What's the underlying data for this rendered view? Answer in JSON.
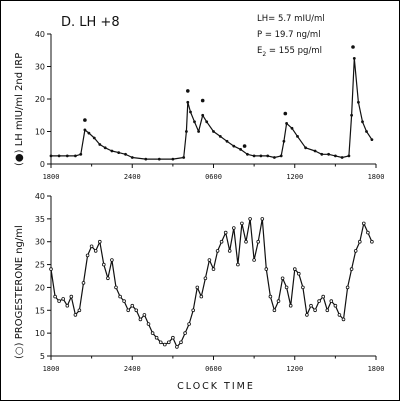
{
  "figure": {
    "panel_title": "D.  LH +8",
    "stats": {
      "lh": "LH= 5.7 mIU/ml",
      "p": "P  = 19.7  ng/ml",
      "e2_prefix": "E",
      "e2_sub": "2",
      "e2_rest": " = 155  pg/ml"
    },
    "xlabel": "CLOCK          TIME",
    "colors": {
      "ink": "#111111"
    }
  },
  "chart_data": [
    {
      "type": "line",
      "title": "",
      "ylabel_prefix": "(",
      "ylabel_marker": "filled-circle",
      "ylabel_text": ") LH mIU/ml 2nd IRP",
      "ylim": [
        0,
        40
      ],
      "yticks": [
        0,
        10,
        20,
        30,
        40
      ],
      "xlim": [
        0,
        24
      ],
      "xticks": [
        {
          "v": 0,
          "label": "1800"
        },
        {
          "v": 6,
          "label": "2400"
        },
        {
          "v": 12,
          "label": "0600"
        },
        {
          "v": 18,
          "label": "1200"
        },
        {
          "v": 24,
          "label": "1800"
        }
      ],
      "marker": "filled-circle",
      "pulse_marks": [
        {
          "x": 2.5,
          "y": 13.5
        },
        {
          "x": 10.1,
          "y": 22.5
        },
        {
          "x": 11.2,
          "y": 19.5
        },
        {
          "x": 14.3,
          "y": 5.5
        },
        {
          "x": 17.3,
          "y": 15.5
        },
        {
          "x": 22.3,
          "y": 36.0
        }
      ],
      "x": [
        0,
        0.6,
        1.2,
        1.8,
        2.2,
        2.5,
        2.8,
        3.2,
        3.6,
        4.0,
        4.5,
        5.0,
        5.5,
        6.0,
        7.0,
        8.0,
        9.0,
        9.8,
        10.0,
        10.1,
        10.3,
        10.6,
        10.9,
        11.2,
        11.5,
        12.0,
        12.5,
        13.0,
        13.5,
        14.0,
        14.5,
        15.0,
        15.5,
        16.0,
        16.5,
        17.0,
        17.2,
        17.4,
        17.8,
        18.2,
        18.8,
        19.5,
        20.0,
        20.5,
        21.0,
        21.5,
        22.0,
        22.2,
        22.4,
        22.7,
        23.0,
        23.3,
        23.7
      ],
      "y": [
        2.5,
        2.5,
        2.5,
        2.5,
        3.0,
        10.5,
        9.5,
        8.0,
        6.0,
        5.0,
        4.0,
        3.5,
        3.0,
        2.0,
        1.5,
        1.5,
        1.5,
        2.0,
        10.0,
        19.0,
        16.0,
        13.0,
        10.0,
        15.0,
        13.0,
        10.0,
        8.5,
        7.0,
        5.5,
        4.5,
        3.0,
        2.5,
        2.5,
        2.5,
        2.0,
        2.5,
        7.0,
        12.5,
        11.0,
        8.5,
        5.0,
        4.0,
        3.0,
        3.0,
        2.5,
        2.0,
        2.5,
        15.0,
        32.5,
        19.0,
        13.0,
        10.0,
        7.5
      ]
    },
    {
      "type": "line",
      "title": "",
      "ylabel_prefix": "(",
      "ylabel_marker": "open-circle",
      "ylabel_text": ") PROGESTERONE   ng/ml",
      "ylim": [
        5,
        40
      ],
      "yticks": [
        5,
        10,
        15,
        20,
        25,
        30,
        35,
        40
      ],
      "xlim": [
        0,
        24
      ],
      "xticks": [
        {
          "v": 0,
          "label": "1800"
        },
        {
          "v": 6,
          "label": "2400"
        },
        {
          "v": 12,
          "label": "0600"
        },
        {
          "v": 18,
          "label": "1200"
        },
        {
          "v": 24,
          "label": "1800"
        }
      ],
      "marker": "open-circle",
      "x": [
        0,
        0.3,
        0.6,
        0.9,
        1.2,
        1.5,
        1.8,
        2.1,
        2.4,
        2.7,
        3.0,
        3.3,
        3.6,
        3.9,
        4.2,
        4.5,
        4.8,
        5.1,
        5.4,
        5.7,
        6.0,
        6.3,
        6.6,
        6.9,
        7.2,
        7.5,
        7.8,
        8.1,
        8.4,
        8.7,
        9.0,
        9.3,
        9.6,
        9.9,
        10.2,
        10.5,
        10.8,
        11.1,
        11.4,
        11.7,
        12.0,
        12.3,
        12.6,
        12.9,
        13.2,
        13.5,
        13.8,
        14.1,
        14.4,
        14.7,
        15.0,
        15.3,
        15.6,
        15.9,
        16.2,
        16.5,
        16.8,
        17.1,
        17.4,
        17.7,
        18.0,
        18.3,
        18.6,
        18.9,
        19.2,
        19.5,
        19.8,
        20.1,
        20.4,
        20.7,
        21.0,
        21.3,
        21.6,
        21.9,
        22.2,
        22.5,
        22.8,
        23.1,
        23.4,
        23.7
      ],
      "y": [
        24,
        18,
        17,
        17.5,
        16,
        18,
        14,
        15,
        21,
        27,
        29,
        28,
        30,
        25,
        22,
        26,
        20,
        18,
        17,
        15,
        16,
        15,
        13,
        14,
        12,
        10,
        9,
        8,
        7.5,
        8,
        9,
        7,
        8,
        10,
        12,
        15,
        20,
        18,
        22,
        26,
        24,
        28,
        30,
        32,
        28,
        33,
        25,
        34,
        30,
        35,
        26,
        30,
        35,
        24,
        18,
        15,
        17,
        22,
        20,
        16,
        24,
        23,
        20,
        14,
        16,
        15,
        17,
        18,
        15,
        17,
        16,
        14,
        13,
        20,
        24,
        28,
        30,
        34,
        32,
        30
      ]
    }
  ]
}
